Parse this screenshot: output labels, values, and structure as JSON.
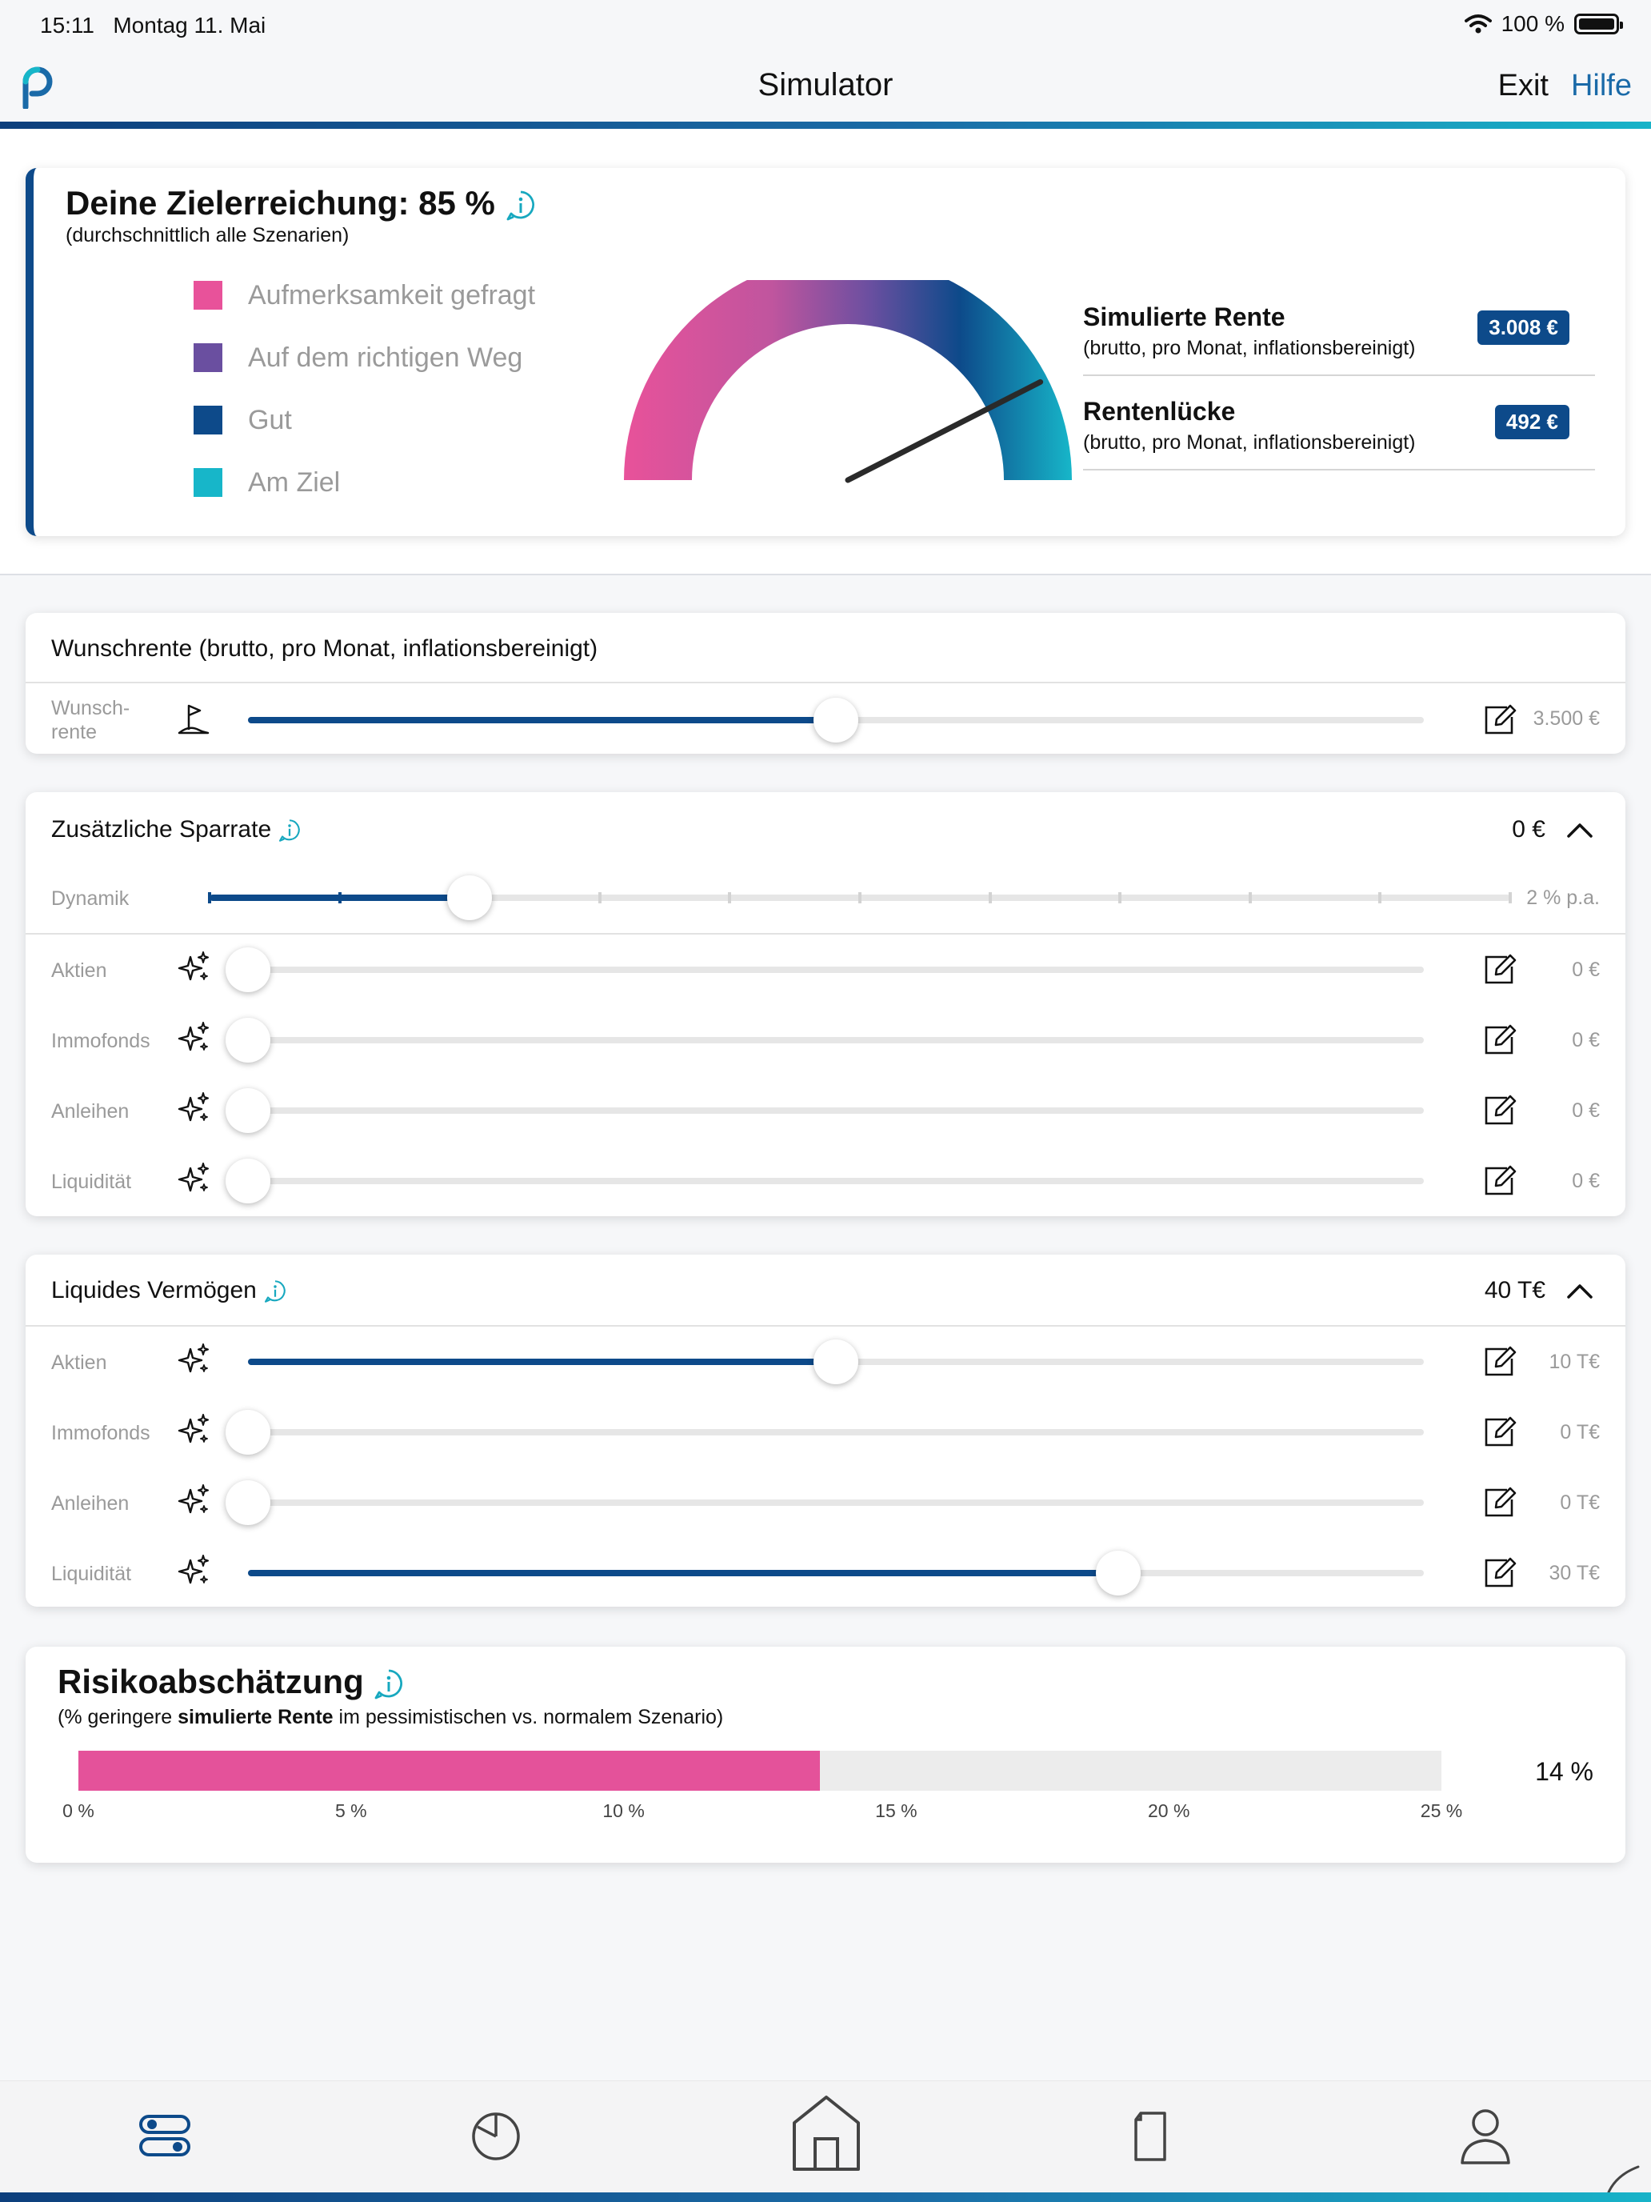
{
  "status": {
    "time": "15:11",
    "date": "Montag 11. Mai",
    "battery": "100 %"
  },
  "nav": {
    "title": "Simulator",
    "exit": "Exit",
    "help": "Hilfe"
  },
  "target": {
    "title": "Deine Zielerreichung: 85 %",
    "subtitle": "(durchschnittlich alle Szenarien)",
    "percent": 85,
    "legend": [
      {
        "label": "Aufmerksamkeit gefragt",
        "color": "#e8529a"
      },
      {
        "label": "Auf dem richtigen Weg",
        "color": "#6a4fa0"
      },
      {
        "label": "Gut",
        "color": "#0d4a8a"
      },
      {
        "label": "Am Ziel",
        "color": "#17b6c9"
      }
    ],
    "metrics": [
      {
        "name": "Simulierte Rente",
        "sub": "(brutto, pro Monat, inflationsbereinigt)",
        "value": "3.008 €"
      },
      {
        "name": "Rentenlücke",
        "sub": "(brutto, pro Monat, inflationsbereinigt)",
        "value": "492 €"
      }
    ]
  },
  "wish": {
    "title": "Wunschrente (brutto, pro Monat, inflationsbereinigt)",
    "label_line1": "Wunsch-",
    "label_line2": "rente",
    "value": "3.500 €",
    "fraction": 0.5
  },
  "savings": {
    "title": "Zusätzliche Sparrate",
    "total": "0 €",
    "dynamic_label": "Dynamik",
    "dynamic_value": "2 % p.a.",
    "dynamic_fraction": 0.2,
    "rows": [
      {
        "label": "Aktien",
        "value": "0 €",
        "fraction": 0
      },
      {
        "label": "Immofonds",
        "value": "0 €",
        "fraction": 0
      },
      {
        "label": "Anleihen",
        "value": "0 €",
        "fraction": 0
      },
      {
        "label": "Liquidität",
        "value": "0 €",
        "fraction": 0
      }
    ]
  },
  "assets": {
    "title": "Liquides Vermögen",
    "total": "40 T€",
    "rows": [
      {
        "label": "Aktien",
        "value": "10 T€",
        "fraction": 0.5
      },
      {
        "label": "Immofonds",
        "value": "0 T€",
        "fraction": 0
      },
      {
        "label": "Anleihen",
        "value": "0 T€",
        "fraction": 0
      },
      {
        "label": "Liquidität",
        "value": "30 T€",
        "fraction": 0.74
      }
    ]
  },
  "risk": {
    "title": "Risikoabschätzung",
    "sub_prefix": "(% geringere ",
    "sub_bold": "simulierte Rente",
    "sub_suffix": " im pessimistischen vs. normalem Szenario)",
    "value": "14 %",
    "percent": 13.6,
    "max": 25,
    "ticks": [
      "0 %",
      "5 %",
      "10 %",
      "15 %",
      "20 %",
      "25 %"
    ]
  },
  "tabs": [
    "sliders-icon",
    "pie-chart-icon",
    "home-icon",
    "document-icon",
    "profile-icon"
  ]
}
